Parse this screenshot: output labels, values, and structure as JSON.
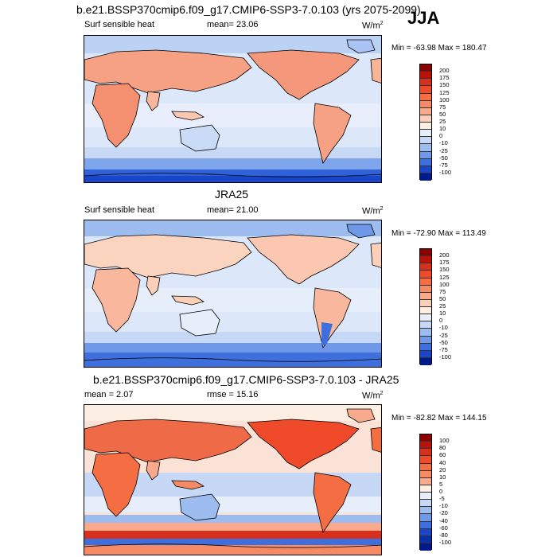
{
  "season": "JJA",
  "panels": [
    {
      "title": "b.e21.BSSP370cmip6.f09_g17.CMIP6-SSP3-7.0.103 (yrs 2075-2099)",
      "left_label": "Surf sensible heat",
      "mid_label": "mean=  23.06",
      "units": "W/m",
      "units_sup": "2",
      "minmax": "Min = -63.98 Max = 180.47",
      "colorbar_labels": [
        "200",
        "175",
        "150",
        "125",
        "100",
        "75",
        "50",
        "25",
        "10",
        "0",
        "-10",
        "-25",
        "-50",
        "-75",
        "-100"
      ],
      "colorbar_colors": [
        "#8c0000",
        "#b8120a",
        "#d7301f",
        "#ef4a2a",
        "#f46d43",
        "#f68a64",
        "#f9a98c",
        "#fcd0b8",
        "#fdeee3",
        "#e6eefa",
        "#c6d8f5",
        "#9dbcf0",
        "#6f98e8",
        "#3f6fdc",
        "#1a46cc",
        "#001a8c"
      ]
    },
    {
      "title": "JRA25",
      "left_label": "Surf sensible heat",
      "mid_label": "mean=  21.00",
      "units": "W/m",
      "units_sup": "2",
      "minmax": "Min = -72.90 Max = 113.49",
      "colorbar_labels": [
        "200",
        "175",
        "150",
        "125",
        "100",
        "75",
        "50",
        "25",
        "10",
        "0",
        "-10",
        "-25",
        "-50",
        "-75",
        "-100"
      ],
      "colorbar_colors": [
        "#8c0000",
        "#b8120a",
        "#d7301f",
        "#ef4a2a",
        "#f46d43",
        "#f68a64",
        "#f9a98c",
        "#fcd0b8",
        "#fdeee3",
        "#e6eefa",
        "#c6d8f5",
        "#9dbcf0",
        "#6f98e8",
        "#3f6fdc",
        "#1a46cc",
        "#001a8c"
      ]
    },
    {
      "title": "b.e21.BSSP370cmip6.f09_g17.CMIP6-SSP3-7.0.103 - JRA25",
      "left_label": "mean =   2.07",
      "mid_label": "rmse =  15.16",
      "units": "W/m",
      "units_sup": "2",
      "minmax": "Min = -82.82 Max = 144.15",
      "colorbar_labels": [
        "100",
        "80",
        "60",
        "40",
        "20",
        "10",
        "5",
        "0",
        "-5",
        "-10",
        "-20",
        "-40",
        "-60",
        "-80",
        "-100"
      ],
      "colorbar_colors": [
        "#8c0000",
        "#b8120a",
        "#d7301f",
        "#ef4a2a",
        "#f46d43",
        "#f68a64",
        "#f9a98c",
        "#fdeee3",
        "#e6eefa",
        "#c6d8f5",
        "#9dbcf0",
        "#6f98e8",
        "#3f6fdc",
        "#1a46cc",
        "#0a2fa8",
        "#001a8c"
      ]
    }
  ]
}
